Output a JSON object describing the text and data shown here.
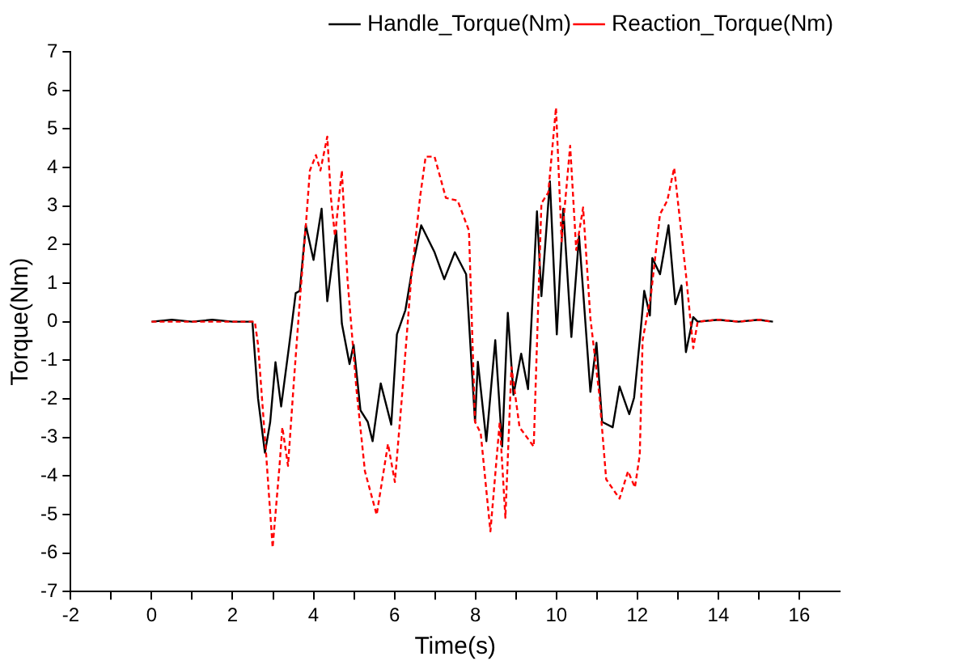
{
  "chart_data": {
    "type": "line",
    "xlabel": "Time(s)",
    "ylabel": "Torque(Nm)",
    "xlim": [
      -2,
      17
    ],
    "ylim": [
      -7,
      7
    ],
    "xticks": [
      -2,
      {
        "value": -1,
        "label": null
      },
      0,
      {
        "value": 1,
        "label": null
      },
      2,
      {
        "value": 3,
        "label": null
      },
      4,
      {
        "value": 5,
        "label": null
      },
      6,
      {
        "value": 7,
        "label": null
      },
      8,
      {
        "value": 9,
        "label": null
      },
      10,
      {
        "value": 11,
        "label": null
      },
      12,
      {
        "value": 13,
        "label": null
      },
      14,
      {
        "value": 15,
        "label": null
      },
      16
    ],
    "yticks": [
      -7,
      -6,
      -5,
      -4,
      -3,
      -2,
      -1,
      0,
      1,
      2,
      3,
      4,
      5,
      6,
      7
    ],
    "grid": false,
    "legend": "top right",
    "marker": "none",
    "series": [
      {
        "name": "Handle_Torque(Nm)",
        "color": "#000000",
        "line_style": "solid",
        "x": [
          0,
          0.5,
          1,
          1.5,
          2,
          2.49,
          2.63,
          2.8,
          2.93,
          3.06,
          3.2,
          3.4,
          3.56,
          3.66,
          3.81,
          4.0,
          4.2,
          4.34,
          4.56,
          4.7,
          4.89,
          4.99,
          5.16,
          5.34,
          5.46,
          5.66,
          5.92,
          6.06,
          6.27,
          6.46,
          6.66,
          6.99,
          7.23,
          7.49,
          7.77,
          7.99,
          8.06,
          8.27,
          8.49,
          8.66,
          8.8,
          8.94,
          9.13,
          9.3,
          9.52,
          9.63,
          9.84,
          10.01,
          10.17,
          10.37,
          10.56,
          10.66,
          10.84,
          10.99,
          11.13,
          11.39,
          11.56,
          11.8,
          11.92,
          12.06,
          12.17,
          12.31,
          12.37,
          12.56,
          12.77,
          12.94,
          13.09,
          13.2,
          13.38,
          13.49,
          14,
          14.5,
          15,
          15.35
        ],
        "values": [
          0,
          0.05,
          0,
          0.05,
          0,
          0,
          -2.0,
          -3.4,
          -2.6,
          -1.05,
          -2.2,
          -0.6,
          0.74,
          0.8,
          2.5,
          1.6,
          2.93,
          0.53,
          2.36,
          -0.05,
          -1.1,
          -0.6,
          -2.3,
          -2.6,
          -3.1,
          -1.6,
          -2.67,
          -0.33,
          0.3,
          1.5,
          2.5,
          1.8,
          1.1,
          1.8,
          1.23,
          -2.6,
          -1.04,
          -3.1,
          -0.48,
          -3.24,
          0.23,
          -1.9,
          -0.83,
          -1.75,
          2.86,
          0.66,
          3.64,
          -0.33,
          2.93,
          -0.4,
          2.22,
          0.8,
          -1.82,
          -0.55,
          -2.6,
          -2.74,
          -1.68,
          -2.4,
          -1.97,
          -0.48,
          0.8,
          0.16,
          1.65,
          1.23,
          2.5,
          0.45,
          0.94,
          -0.79,
          0.12,
          0,
          0.05,
          0,
          0.05,
          0
        ]
      },
      {
        "name": "Reaction_Torque(Nm)",
        "color": "#ff0000",
        "line_style": "dashed",
        "x": [
          0,
          0.5,
          1,
          1.5,
          2,
          2.55,
          2.63,
          2.83,
          2.99,
          3.16,
          3.23,
          3.37,
          3.52,
          3.67,
          3.81,
          3.91,
          4.06,
          4.17,
          4.34,
          4.43,
          4.53,
          4.7,
          4.84,
          5.06,
          5.27,
          5.56,
          5.84,
          6.01,
          6.2,
          6.41,
          6.63,
          6.77,
          6.99,
          7.27,
          7.56,
          7.84,
          7.99,
          8.13,
          8.37,
          8.6,
          8.74,
          8.89,
          9.09,
          9.44,
          9.63,
          9.8,
          9.99,
          10.13,
          10.34,
          10.49,
          10.66,
          10.84,
          11.06,
          11.23,
          11.56,
          11.77,
          11.94,
          12.06,
          12.13,
          12.34,
          12.56,
          12.74,
          12.91,
          13.2,
          13.38,
          13.49,
          14,
          14.5,
          15,
          15.3
        ],
        "values": [
          0,
          0,
          0,
          0,
          0,
          0,
          -0.6,
          -3.45,
          -5.86,
          -3.74,
          -2.74,
          -3.74,
          -1.47,
          0.66,
          2.5,
          3.92,
          4.32,
          3.92,
          4.8,
          3.21,
          2.22,
          3.92,
          1.09,
          -1.75,
          -3.88,
          -5.01,
          -3.17,
          -4.16,
          -1.75,
          1.09,
          3.21,
          4.28,
          4.28,
          3.21,
          3.14,
          2.36,
          -2.6,
          -2.89,
          -5.44,
          -2.6,
          -5.09,
          -1.18,
          -2.74,
          -3.24,
          3.07,
          3.35,
          5.55,
          2.08,
          4.56,
          1.86,
          2.96,
          0.09,
          -1.89,
          -4.09,
          -4.59,
          -3.88,
          -4.3,
          -3.45,
          -0.48,
          0.73,
          2.79,
          3.14,
          3.99,
          1.23,
          -0.69,
          0,
          0.05,
          0,
          0.05,
          0
        ]
      }
    ]
  }
}
